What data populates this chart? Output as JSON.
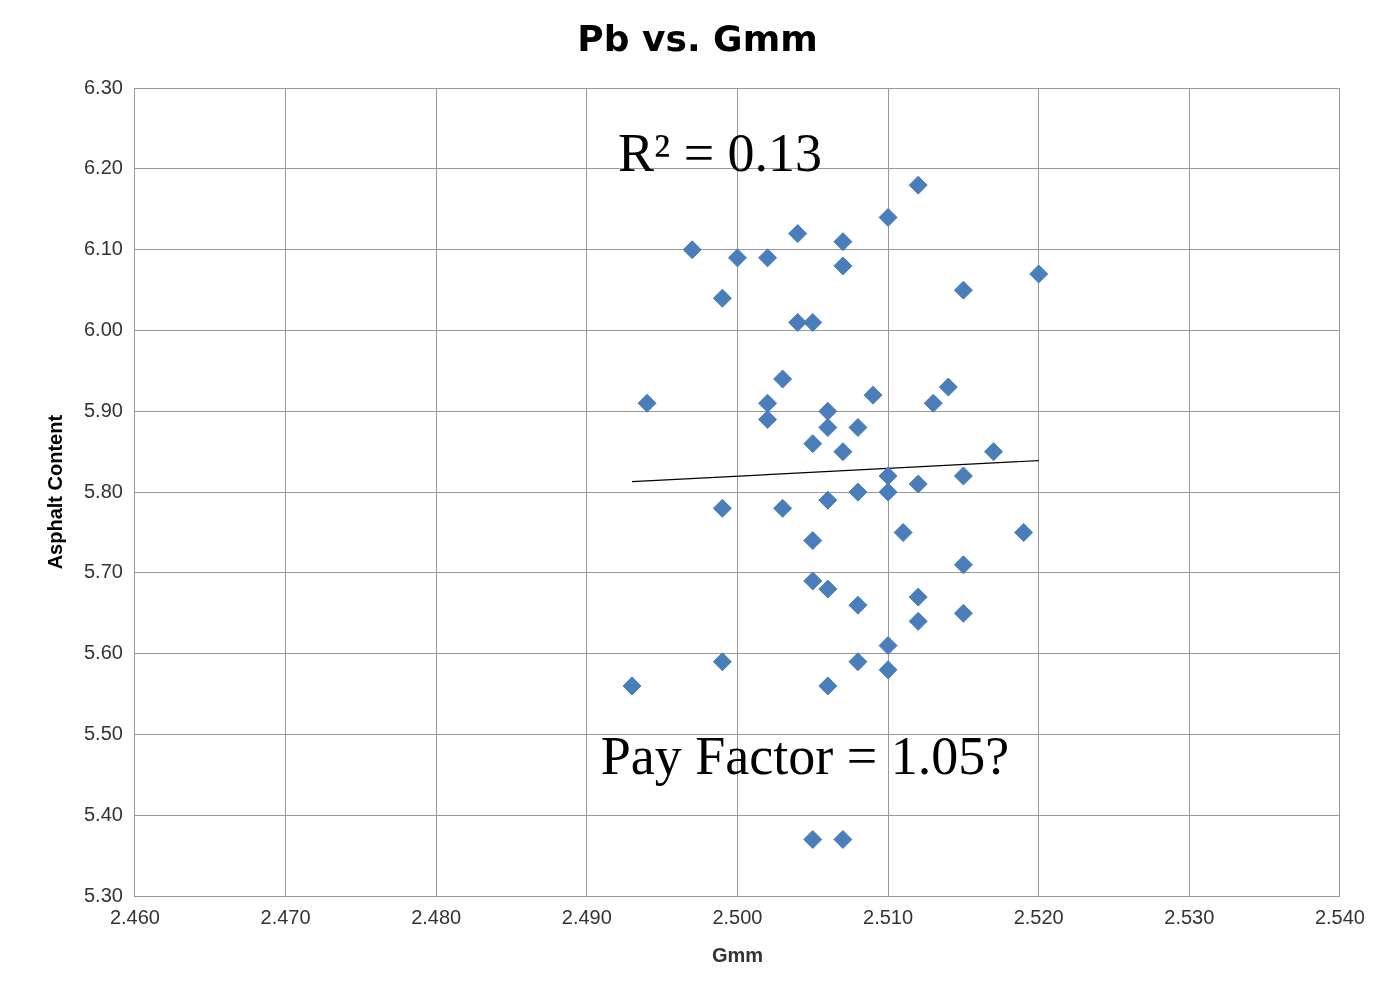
{
  "chart_data": {
    "type": "scatter",
    "title": "Pb vs. Gmm",
    "xlabel": "Gmm",
    "ylabel": "Asphalt Content",
    "annotations": [
      "R² = 0.13",
      "Pay Factor = 1.05?"
    ],
    "grid": true,
    "legend": false,
    "xlim": [
      2.46,
      2.54
    ],
    "xticks": [
      {
        "value": 2.46,
        "label": "2.460"
      },
      {
        "value": 2.47,
        "label": "2.470"
      },
      {
        "value": 2.48,
        "label": "2.480"
      },
      {
        "value": 2.49,
        "label": "2.490"
      },
      {
        "value": 2.5,
        "label": "2.500"
      },
      {
        "value": 2.51,
        "label": "2.510"
      },
      {
        "value": 2.52,
        "label": "2.520"
      },
      {
        "value": 2.53,
        "label": "2.530"
      },
      {
        "value": 2.54,
        "label": "2.540"
      }
    ],
    "ylim": [
      5.3,
      6.3
    ],
    "yticks": [
      {
        "value": 5.3,
        "label": "5.30"
      },
      {
        "value": 5.4,
        "label": "5.40"
      },
      {
        "value": 5.5,
        "label": "5.50"
      },
      {
        "value": 5.6,
        "label": "5.60"
      },
      {
        "value": 5.7,
        "label": "5.70"
      },
      {
        "value": 5.8,
        "label": "5.80"
      },
      {
        "value": 5.9,
        "label": "5.90"
      },
      {
        "value": 6.0,
        "label": "6.00"
      },
      {
        "value": 6.1,
        "label": "6.10"
      },
      {
        "value": 6.2,
        "label": "6.20"
      },
      {
        "value": 6.3,
        "label": "6.30"
      }
    ],
    "series": [
      {
        "marker": "diamond",
        "color": "#4a7ebb",
        "x": [
          2.512,
          2.51,
          2.497,
          2.5,
          2.502,
          2.504,
          2.507,
          2.507,
          2.499,
          2.515,
          2.52,
          2.504,
          2.505,
          2.503,
          2.494,
          2.502,
          2.502,
          2.506,
          2.506,
          2.508,
          2.509,
          2.513,
          2.514,
          2.505,
          2.507,
          2.517,
          2.51,
          2.515,
          2.512,
          2.508,
          2.51,
          2.506,
          2.499,
          2.503,
          2.511,
          2.519,
          2.505,
          2.515,
          2.505,
          2.506,
          2.508,
          2.512,
          2.512,
          2.515,
          2.51,
          2.508,
          2.499,
          2.51,
          2.493,
          2.506,
          2.505,
          2.507
        ],
        "values": [
          6.18,
          6.14,
          6.1,
          6.09,
          6.09,
          6.12,
          6.11,
          6.08,
          6.04,
          6.05,
          6.07,
          6.01,
          6.01,
          5.94,
          5.91,
          5.91,
          5.89,
          5.9,
          5.88,
          5.88,
          5.92,
          5.91,
          5.93,
          5.86,
          5.85,
          5.85,
          5.82,
          5.82,
          5.81,
          5.8,
          5.8,
          5.79,
          5.78,
          5.78,
          5.75,
          5.75,
          5.74,
          5.71,
          5.69,
          5.68,
          5.66,
          5.67,
          5.64,
          5.65,
          5.61,
          5.59,
          5.59,
          5.58,
          5.56,
          5.56,
          5.37,
          5.37
        ]
      },
      {
        "type": "line",
        "marker": "none",
        "color": "#000000",
        "x": [
          2.493,
          2.52
        ],
        "values": [
          5.813,
          5.839
        ]
      }
    ]
  }
}
